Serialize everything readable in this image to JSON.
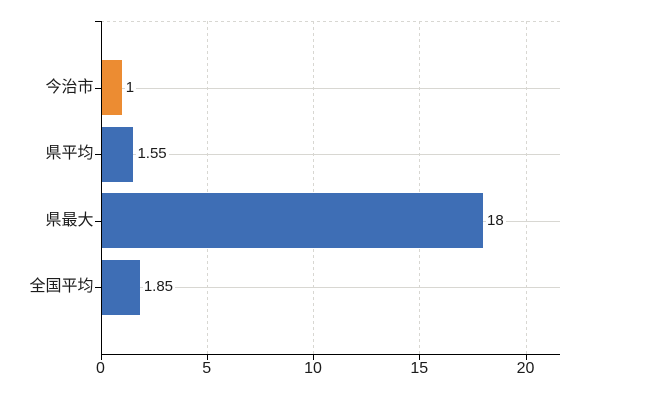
{
  "chart_data": {
    "type": "bar",
    "orientation": "horizontal",
    "title": "",
    "categories": [
      "今治市",
      "県平均",
      "県最大",
      "全国平均"
    ],
    "values": [
      1,
      1.55,
      18,
      1.85
    ],
    "value_labels": [
      "1",
      "1.55",
      "18",
      "1.85"
    ],
    "bar_colors": [
      "#EC8C32",
      "#3E6EB5",
      "#3E6EB5",
      "#3E6EB5"
    ],
    "x_ticks": [
      0,
      5,
      10,
      15,
      20
    ],
    "x_tick_labels": [
      "0",
      "5",
      "10",
      "15",
      "20"
    ],
    "xlim": [
      0,
      21.6
    ],
    "grid": true,
    "legend": false,
    "colors": {
      "grid": "#D8D7D2",
      "axis": "#000000",
      "text": "#1C1C1C",
      "background": "#FFFFFF",
      "bar-blue": "#3E6EB5",
      "bar-orange": "#EC8C32"
    }
  }
}
